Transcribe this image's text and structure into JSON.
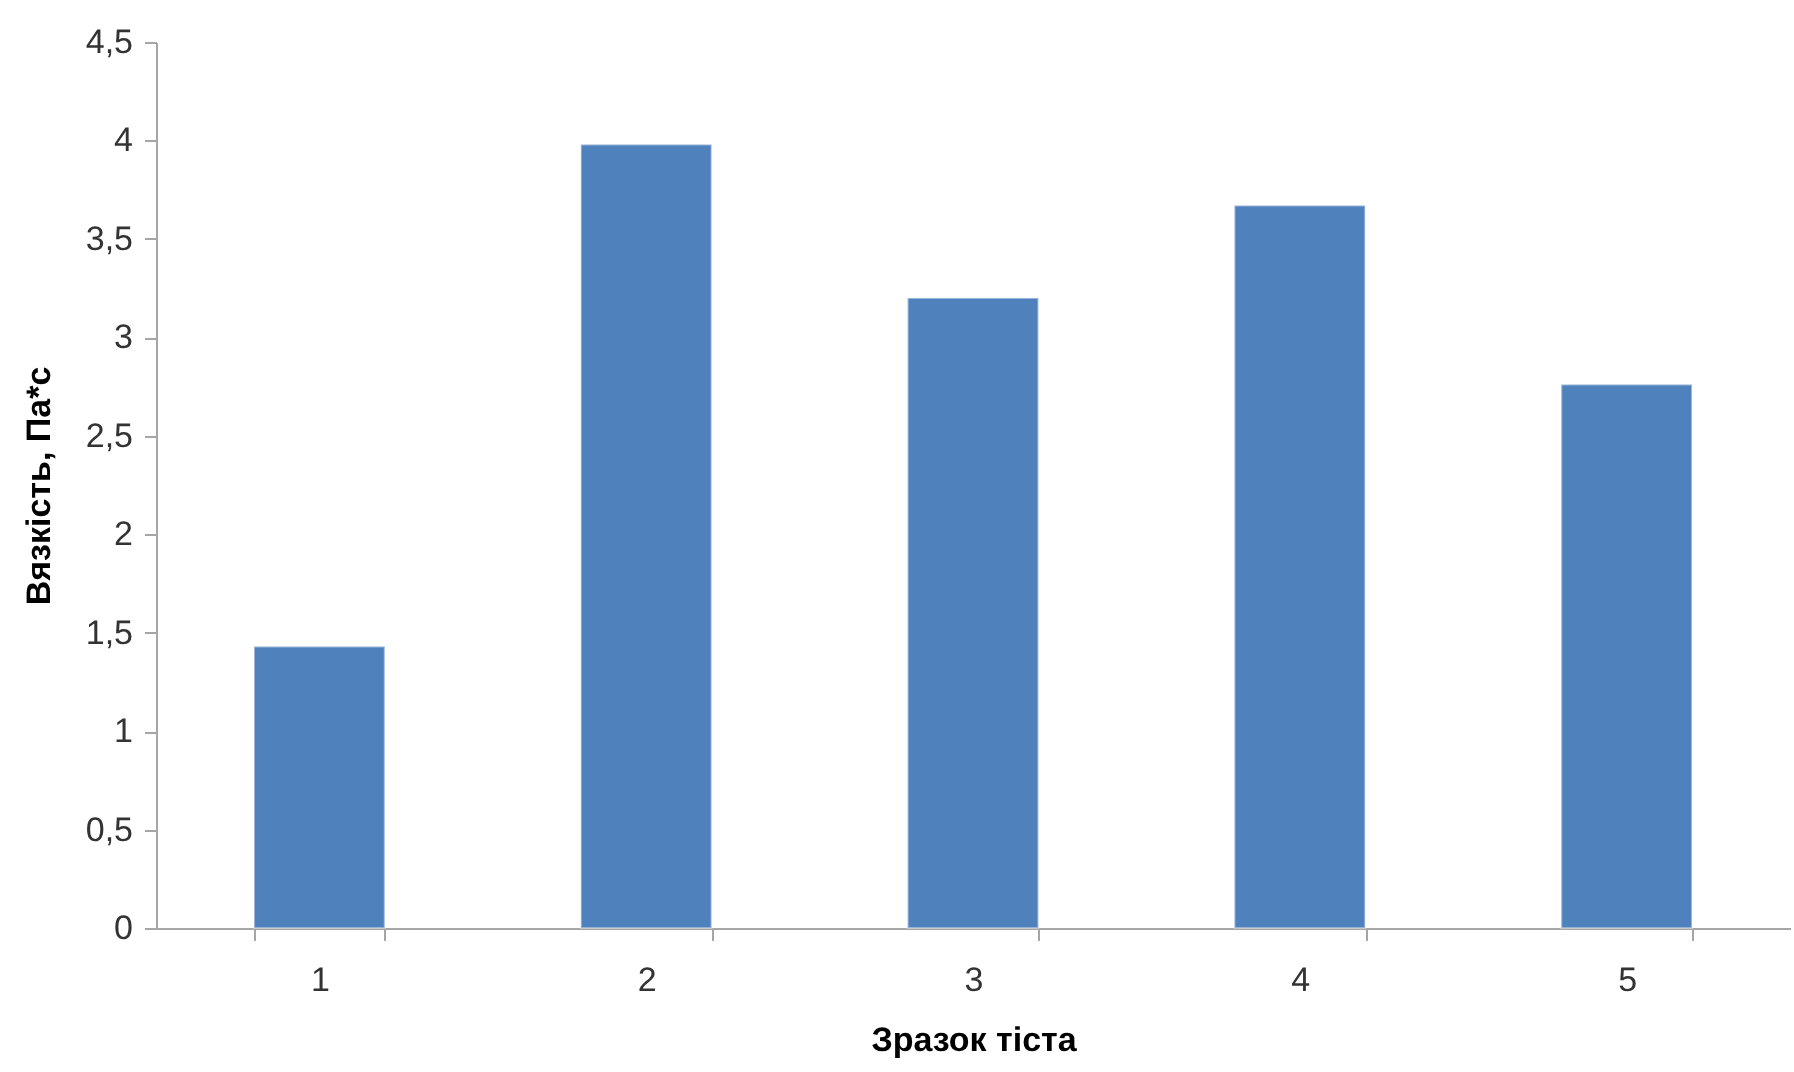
{
  "chart_data": {
    "type": "bar",
    "xlabel": "Зразок тіста",
    "ylabel": "Вязкість, Па*с",
    "categories": [
      "1",
      "2",
      "3",
      "4",
      "5"
    ],
    "values": [
      1.43,
      3.98,
      3.2,
      3.67,
      2.76
    ],
    "color": "#4f81bd",
    "ylim": [
      0,
      4.5
    ],
    "yticks": [
      0,
      {
        "value": 0.5,
        "label": "0,5"
      },
      1,
      {
        "value": 1.5,
        "label": "1,5"
      },
      2,
      {
        "value": 2.5,
        "label": "2,5"
      },
      3,
      {
        "value": 3.5,
        "label": "3,5"
      },
      4,
      {
        "value": 4.5,
        "label": "4,5"
      }
    ],
    "grid": false
  }
}
